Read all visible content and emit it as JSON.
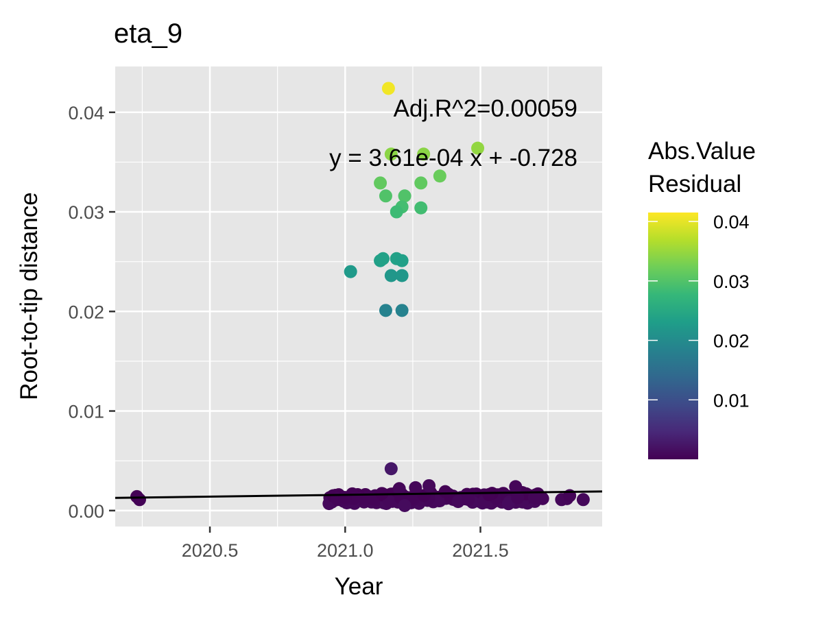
{
  "chart_data": {
    "type": "scatter",
    "title": "eta_9",
    "xlabel": "Year",
    "ylabel": "Root-to-tip distance",
    "xlim": [
      2020.15,
      2021.95
    ],
    "ylim": [
      -0.0016,
      0.0446
    ],
    "x_ticks": [
      2020.5,
      2021.0,
      2021.5
    ],
    "x_tick_labels": [
      "2020.5",
      "2021.0",
      "2021.5"
    ],
    "y_ticks": [
      0.0,
      0.01,
      0.02,
      0.03,
      0.04
    ],
    "y_tick_labels": [
      "0.00",
      "0.01",
      "0.02",
      "0.03",
      "0.04"
    ],
    "grid": true,
    "annotations": [
      "Adj.R^2=0.00059",
      "y = 3.61e-04 x + -0.728"
    ],
    "regression": {
      "slope": 0.000361,
      "intercept": -0.728
    },
    "color_scale": {
      "type": "viridis",
      "title_lines": [
        "Abs.Value",
        "Residual"
      ],
      "range": [
        0.0,
        0.0415
      ],
      "breaks": [
        0.01,
        0.02,
        0.03,
        0.04
      ],
      "break_labels": [
        "0.01",
        "0.02",
        "0.03",
        "0.04"
      ],
      "colors": [
        "#440154",
        "#482878",
        "#3e4a89",
        "#31688e",
        "#26828e",
        "#1f9e89",
        "#35b779",
        "#6ece58",
        "#b5de2b",
        "#fde725"
      ],
      "legend_position": "right"
    },
    "points": [
      {
        "x": 2020.23,
        "y": 0.0014
      },
      {
        "x": 2020.24,
        "y": 0.0011
      },
      {
        "x": 2021.17,
        "y": 0.0042
      },
      {
        "x": 2021.16,
        "y": 0.0424
      },
      {
        "x": 2021.49,
        "y": 0.0364
      },
      {
        "x": 2021.17,
        "y": 0.0358
      },
      {
        "x": 2021.29,
        "y": 0.0358
      },
      {
        "x": 2021.35,
        "y": 0.0336
      },
      {
        "x": 2021.13,
        "y": 0.0329
      },
      {
        "x": 2021.28,
        "y": 0.0329
      },
      {
        "x": 2021.15,
        "y": 0.0316
      },
      {
        "x": 2021.22,
        "y": 0.0316
      },
      {
        "x": 2021.21,
        "y": 0.0305
      },
      {
        "x": 2021.28,
        "y": 0.0304
      },
      {
        "x": 2021.19,
        "y": 0.03
      },
      {
        "x": 2021.13,
        "y": 0.0251
      },
      {
        "x": 2021.14,
        "y": 0.0253
      },
      {
        "x": 2021.19,
        "y": 0.0253
      },
      {
        "x": 2021.21,
        "y": 0.0251
      },
      {
        "x": 2021.02,
        "y": 0.024
      },
      {
        "x": 2021.17,
        "y": 0.0236
      },
      {
        "x": 2021.21,
        "y": 0.0236
      },
      {
        "x": 2021.15,
        "y": 0.0201
      },
      {
        "x": 2021.21,
        "y": 0.0201
      },
      {
        "x": 2021.8,
        "y": 0.0011
      },
      {
        "x": 2021.82,
        "y": 0.0012
      },
      {
        "x": 2021.83,
        "y": 0.0015
      },
      {
        "x": 2021.88,
        "y": 0.0011
      },
      {
        "x": 2021.73,
        "y": 0.0012
      },
      {
        "x": 2021.7,
        "y": 0.0013
      },
      {
        "x": 2021.63,
        "y": 0.0024
      },
      {
        "x": 2021.22,
        "y": 0.0005
      },
      {
        "x": 2021.2,
        "y": 0.0022
      },
      {
        "x": 2021.31,
        "y": 0.0025
      },
      {
        "x": 2021.37,
        "y": 0.0019
      },
      {
        "x": 2021.26,
        "y": 0.0023
      }
    ],
    "dense_cluster": {
      "count": 300,
      "x_range": [
        2020.94,
        2021.72
      ],
      "y_center": 0.00125,
      "y_spread": 0.0006
    }
  }
}
